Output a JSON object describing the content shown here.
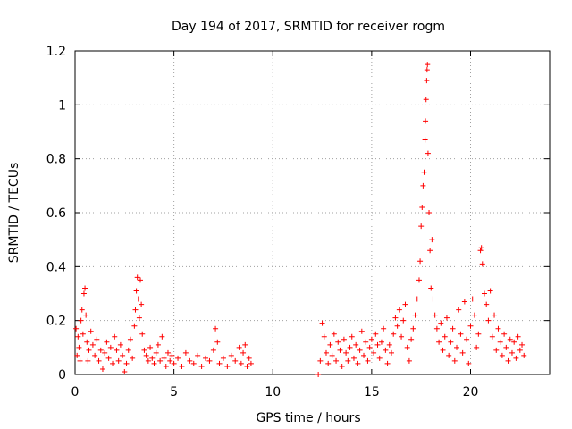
{
  "chart_data": {
    "type": "scatter",
    "title": "Day 194 of 2017, SRMTID for receiver rogm",
    "xlabel": "GPS time / hours",
    "ylabel": "SRMTID / TECUs",
    "xlim": [
      0,
      24
    ],
    "ylim": [
      0,
      1.2
    ],
    "xticks": [
      0,
      5,
      10,
      15,
      20
    ],
    "yticks": [
      0,
      0.2,
      0.4,
      0.6,
      0.8,
      1.0,
      1.2
    ],
    "xtick_labels": [
      "0",
      "5",
      "10",
      "15",
      "20"
    ],
    "ytick_labels": [
      "0",
      "0.2",
      "0.4",
      "0.6",
      "0.8",
      "1",
      "1.2"
    ],
    "grid": true,
    "marker": "+",
    "color": "#ff0000",
    "series": [
      {
        "name": "SRMTID",
        "points": [
          [
            0.05,
            0.17
          ],
          [
            0.1,
            0.07
          ],
          [
            0.15,
            0.14
          ],
          [
            0.2,
            0.1
          ],
          [
            0.25,
            0.05
          ],
          [
            0.3,
            0.2
          ],
          [
            0.35,
            0.24
          ],
          [
            0.4,
            0.15
          ],
          [
            0.45,
            0.3
          ],
          [
            0.5,
            0.32
          ],
          [
            0.55,
            0.22
          ],
          [
            0.6,
            0.12
          ],
          [
            0.65,
            0.05
          ],
          [
            0.7,
            0.09
          ],
          [
            0.8,
            0.16
          ],
          [
            0.9,
            0.11
          ],
          [
            1.0,
            0.07
          ],
          [
            1.1,
            0.13
          ],
          [
            1.2,
            0.05
          ],
          [
            1.3,
            0.09
          ],
          [
            1.4,
            0.02
          ],
          [
            1.5,
            0.08
          ],
          [
            1.6,
            0.12
          ],
          [
            1.7,
            0.06
          ],
          [
            1.8,
            0.1
          ],
          [
            1.9,
            0.04
          ],
          [
            2.0,
            0.14
          ],
          [
            2.1,
            0.09
          ],
          [
            2.2,
            0.05
          ],
          [
            2.3,
            0.11
          ],
          [
            2.4,
            0.07
          ],
          [
            2.5,
            0.01
          ],
          [
            2.6,
            0.04
          ],
          [
            2.7,
            0.09
          ],
          [
            2.8,
            0.13
          ],
          [
            2.9,
            0.06
          ],
          [
            3.0,
            0.18
          ],
          [
            3.05,
            0.24
          ],
          [
            3.1,
            0.31
          ],
          [
            3.15,
            0.36
          ],
          [
            3.2,
            0.28
          ],
          [
            3.25,
            0.21
          ],
          [
            3.3,
            0.35
          ],
          [
            3.35,
            0.26
          ],
          [
            3.4,
            0.15
          ],
          [
            3.5,
            0.09
          ],
          [
            3.6,
            0.07
          ],
          [
            3.7,
            0.05
          ],
          [
            3.8,
            0.1
          ],
          [
            3.9,
            0.06
          ],
          [
            4.0,
            0.04
          ],
          [
            4.1,
            0.08
          ],
          [
            4.2,
            0.11
          ],
          [
            4.3,
            0.05
          ],
          [
            4.4,
            0.14
          ],
          [
            4.5,
            0.06
          ],
          [
            4.6,
            0.03
          ],
          [
            4.7,
            0.08
          ],
          [
            4.8,
            0.05
          ],
          [
            4.9,
            0.07
          ],
          [
            5.0,
            0.04
          ],
          [
            5.2,
            0.06
          ],
          [
            5.4,
            0.03
          ],
          [
            5.6,
            0.08
          ],
          [
            5.8,
            0.05
          ],
          [
            6.0,
            0.04
          ],
          [
            6.2,
            0.07
          ],
          [
            6.4,
            0.03
          ],
          [
            6.6,
            0.06
          ],
          [
            6.8,
            0.05
          ],
          [
            7.0,
            0.09
          ],
          [
            7.1,
            0.17
          ],
          [
            7.2,
            0.12
          ],
          [
            7.3,
            0.04
          ],
          [
            7.5,
            0.06
          ],
          [
            7.7,
            0.03
          ],
          [
            7.9,
            0.07
          ],
          [
            8.1,
            0.05
          ],
          [
            8.3,
            0.1
          ],
          [
            8.4,
            0.04
          ],
          [
            8.5,
            0.08
          ],
          [
            8.6,
            0.11
          ],
          [
            8.7,
            0.03
          ],
          [
            8.8,
            0.06
          ],
          [
            8.9,
            0.04
          ],
          [
            12.3,
            0.0
          ],
          [
            12.4,
            0.05
          ],
          [
            12.5,
            0.19
          ],
          [
            12.6,
            0.14
          ],
          [
            12.7,
            0.08
          ],
          [
            12.8,
            0.04
          ],
          [
            12.9,
            0.11
          ],
          [
            13.0,
            0.07
          ],
          [
            13.1,
            0.15
          ],
          [
            13.2,
            0.05
          ],
          [
            13.3,
            0.12
          ],
          [
            13.4,
            0.09
          ],
          [
            13.5,
            0.03
          ],
          [
            13.6,
            0.13
          ],
          [
            13.7,
            0.08
          ],
          [
            13.8,
            0.05
          ],
          [
            13.9,
            0.1
          ],
          [
            14.0,
            0.14
          ],
          [
            14.1,
            0.06
          ],
          [
            14.2,
            0.11
          ],
          [
            14.3,
            0.04
          ],
          [
            14.4,
            0.09
          ],
          [
            14.5,
            0.16
          ],
          [
            14.6,
            0.07
          ],
          [
            14.7,
            0.12
          ],
          [
            14.8,
            0.05
          ],
          [
            14.9,
            0.1
          ],
          [
            15.0,
            0.13
          ],
          [
            15.1,
            0.08
          ],
          [
            15.2,
            0.15
          ],
          [
            15.3,
            0.11
          ],
          [
            15.4,
            0.06
          ],
          [
            15.5,
            0.12
          ],
          [
            15.6,
            0.17
          ],
          [
            15.7,
            0.09
          ],
          [
            15.8,
            0.04
          ],
          [
            15.9,
            0.11
          ],
          [
            16.0,
            0.08
          ],
          [
            16.1,
            0.15
          ],
          [
            16.2,
            0.21
          ],
          [
            16.3,
            0.18
          ],
          [
            16.4,
            0.24
          ],
          [
            16.5,
            0.14
          ],
          [
            16.6,
            0.2
          ],
          [
            16.7,
            0.26
          ],
          [
            16.8,
            0.1
          ],
          [
            16.9,
            0.05
          ],
          [
            17.0,
            0.13
          ],
          [
            17.1,
            0.17
          ],
          [
            17.2,
            0.22
          ],
          [
            17.3,
            0.28
          ],
          [
            17.4,
            0.35
          ],
          [
            17.45,
            0.42
          ],
          [
            17.5,
            0.55
          ],
          [
            17.55,
            0.62
          ],
          [
            17.6,
            0.7
          ],
          [
            17.65,
            0.75
          ],
          [
            17.7,
            0.87
          ],
          [
            17.72,
            0.94
          ],
          [
            17.75,
            1.02
          ],
          [
            17.78,
            1.09
          ],
          [
            17.8,
            1.13
          ],
          [
            17.82,
            1.15
          ],
          [
            17.85,
            0.82
          ],
          [
            17.9,
            0.6
          ],
          [
            17.95,
            0.46
          ],
          [
            18.0,
            0.32
          ],
          [
            18.05,
            0.5
          ],
          [
            18.1,
            0.28
          ],
          [
            18.2,
            0.22
          ],
          [
            18.3,
            0.17
          ],
          [
            18.4,
            0.12
          ],
          [
            18.5,
            0.19
          ],
          [
            18.6,
            0.09
          ],
          [
            18.7,
            0.14
          ],
          [
            18.8,
            0.21
          ],
          [
            18.9,
            0.07
          ],
          [
            19.0,
            0.12
          ],
          [
            19.1,
            0.17
          ],
          [
            19.2,
            0.05
          ],
          [
            19.3,
            0.1
          ],
          [
            19.4,
            0.24
          ],
          [
            19.5,
            0.15
          ],
          [
            19.6,
            0.08
          ],
          [
            19.7,
            0.27
          ],
          [
            19.8,
            0.13
          ],
          [
            19.9,
            0.04
          ],
          [
            20.0,
            0.18
          ],
          [
            20.1,
            0.28
          ],
          [
            20.2,
            0.22
          ],
          [
            20.3,
            0.1
          ],
          [
            20.4,
            0.15
          ],
          [
            20.5,
            0.46
          ],
          [
            20.55,
            0.47
          ],
          [
            20.6,
            0.41
          ],
          [
            20.7,
            0.3
          ],
          [
            20.8,
            0.26
          ],
          [
            20.9,
            0.2
          ],
          [
            21.0,
            0.31
          ],
          [
            21.1,
            0.14
          ],
          [
            21.2,
            0.22
          ],
          [
            21.3,
            0.09
          ],
          [
            21.4,
            0.17
          ],
          [
            21.5,
            0.12
          ],
          [
            21.6,
            0.07
          ],
          [
            21.7,
            0.15
          ],
          [
            21.8,
            0.1
          ],
          [
            21.9,
            0.05
          ],
          [
            22.0,
            0.13
          ],
          [
            22.1,
            0.08
          ],
          [
            22.2,
            0.12
          ],
          [
            22.3,
            0.06
          ],
          [
            22.4,
            0.14
          ],
          [
            22.5,
            0.09
          ],
          [
            22.6,
            0.11
          ],
          [
            22.7,
            0.07
          ]
        ]
      }
    ]
  }
}
